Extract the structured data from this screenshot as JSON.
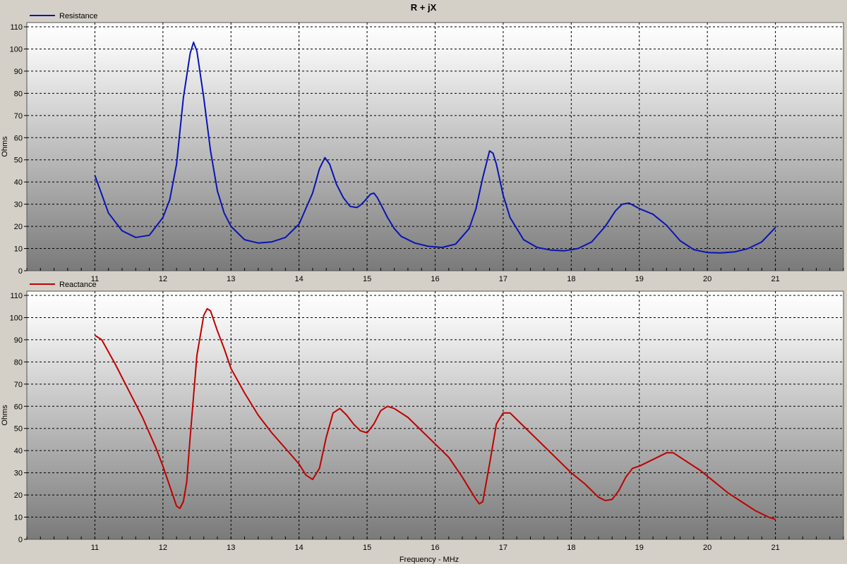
{
  "chart_title": "R + jX",
  "x_label": "Frequency - MHz",
  "colors": {
    "background": "#d4d0c8",
    "resistance": "#0a14b4",
    "reactance": "#c00000"
  },
  "chart_data": [
    {
      "type": "line",
      "title": "R + jX",
      "series": [
        {
          "name": "Resistance",
          "color": "#0a14b4",
          "x": [
            11.0,
            11.2,
            11.4,
            11.6,
            11.8,
            12.0,
            12.1,
            12.2,
            12.3,
            12.4,
            12.45,
            12.5,
            12.6,
            12.7,
            12.8,
            12.9,
            13.0,
            13.2,
            13.4,
            13.6,
            13.8,
            14.0,
            14.2,
            14.3,
            14.38,
            14.45,
            14.55,
            14.65,
            14.75,
            14.85,
            14.9,
            14.95,
            15.05,
            15.1,
            15.15,
            15.2,
            15.3,
            15.4,
            15.5,
            15.7,
            15.9,
            16.1,
            16.3,
            16.5,
            16.6,
            16.7,
            16.8,
            16.85,
            16.9,
            17.0,
            17.1,
            17.3,
            17.5,
            17.7,
            17.9,
            18.1,
            18.3,
            18.5,
            18.65,
            18.75,
            18.85,
            19.0,
            19.2,
            19.4,
            19.6,
            19.8,
            20.0,
            20.2,
            20.4,
            20.6,
            20.8,
            21.0
          ],
          "y": [
            43,
            26,
            18,
            15,
            16,
            24,
            32,
            48,
            78,
            98,
            103,
            99,
            78,
            54,
            36,
            26,
            20,
            14,
            12.5,
            13,
            15,
            21,
            35,
            46,
            51,
            48,
            39,
            33,
            29,
            28.5,
            29.5,
            31,
            34.5,
            35,
            33,
            30,
            24,
            19,
            15.5,
            12.5,
            11,
            10.5,
            12,
            19,
            28,
            42,
            54,
            53,
            48,
            34,
            24,
            14,
            10.5,
            9.3,
            9,
            10,
            13,
            20,
            27,
            30,
            30.5,
            28,
            25.5,
            20.5,
            13.5,
            9.5,
            8.2,
            8,
            8.5,
            10,
            13,
            19.5
          ]
        }
      ],
      "xlim": [
        10,
        22
      ],
      "ylim": [
        0,
        110
      ],
      "x_ticks": [
        11,
        12,
        13,
        14,
        15,
        16,
        17,
        18,
        19,
        20,
        21
      ],
      "y_ticks": [
        0,
        10,
        20,
        30,
        40,
        50,
        60,
        70,
        80,
        90,
        100,
        110
      ],
      "ylabel": "Ohms",
      "grid": true,
      "legend": "top-left"
    },
    {
      "type": "line",
      "series": [
        {
          "name": "Reactance",
          "color": "#c00000",
          "x": [
            11.0,
            11.1,
            11.3,
            11.5,
            11.7,
            11.9,
            12.0,
            12.1,
            12.2,
            12.25,
            12.3,
            12.35,
            12.4,
            12.5,
            12.6,
            12.65,
            12.7,
            12.8,
            12.9,
            13.0,
            13.2,
            13.4,
            13.6,
            13.8,
            14.0,
            14.1,
            14.2,
            14.3,
            14.4,
            14.5,
            14.6,
            14.7,
            14.8,
            14.9,
            15.0,
            15.1,
            15.2,
            15.3,
            15.4,
            15.6,
            15.8,
            16.0,
            16.2,
            16.4,
            16.5,
            16.6,
            16.65,
            16.7,
            16.8,
            16.9,
            17.0,
            17.1,
            17.2,
            17.4,
            17.6,
            17.8,
            18.0,
            18.2,
            18.4,
            18.5,
            18.6,
            18.7,
            18.8,
            18.9,
            19.0,
            19.2,
            19.4,
            19.5,
            19.7,
            19.9,
            20.1,
            20.3,
            20.5,
            20.7,
            20.9,
            21.0
          ],
          "y": [
            92,
            90,
            79,
            67,
            55,
            41,
            33,
            24,
            15,
            14,
            17,
            26,
            46,
            83,
            101,
            104,
            103,
            94,
            86,
            77,
            66,
            56,
            48,
            41,
            34,
            29,
            27,
            32,
            46,
            57,
            59,
            56,
            52,
            49,
            48,
            52,
            58,
            60,
            59,
            55,
            49,
            43,
            37,
            28,
            23,
            18,
            16,
            17,
            34,
            52,
            57,
            57,
            54,
            48,
            42,
            36,
            30,
            25,
            19,
            17.5,
            18,
            22,
            28,
            32,
            33,
            36,
            39,
            39,
            35,
            31,
            26,
            21,
            17,
            13,
            10,
            9
          ]
        }
      ],
      "xlim": [
        10,
        22
      ],
      "ylim": [
        0,
        110
      ],
      "x_ticks": [
        11,
        12,
        13,
        14,
        15,
        16,
        17,
        18,
        19,
        20,
        21
      ],
      "y_ticks": [
        0,
        10,
        20,
        30,
        40,
        50,
        60,
        70,
        80,
        90,
        100,
        110
      ],
      "ylabel": "Ohms",
      "xlabel": "Frequency - MHz",
      "grid": true,
      "legend": "top-left"
    }
  ]
}
